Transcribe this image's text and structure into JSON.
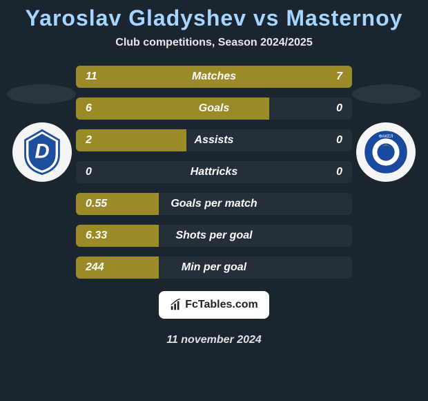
{
  "title": "Yaroslav Gladyshev vs Masternoy",
  "subtitle": "Club competitions, Season 2024/2025",
  "date": "11 november 2024",
  "footer_brand": "FcTables.com",
  "colors": {
    "bar_left": "#9a8b28",
    "bar_right": "#9a8b28",
    "row_bg": "#242f3a",
    "title": "#a6d5ff",
    "text": "#ffffff"
  },
  "logos": {
    "left": {
      "name": "dinamo-moscow-crest",
      "primary": "#1e4f9e",
      "accent": "#ffffff",
      "letter": "D"
    },
    "right": {
      "name": "fakel-voronezh-crest",
      "primary": "#1a4aa0",
      "accent": "#ffffff",
      "letter": "Ф"
    }
  },
  "stats": [
    {
      "label": "Matches",
      "left_val": "11",
      "right_val": "7",
      "left_pct": 61,
      "right_pct": 39
    },
    {
      "label": "Goals",
      "left_val": "6",
      "right_val": "0",
      "left_pct": 70,
      "right_pct": 0
    },
    {
      "label": "Assists",
      "left_val": "2",
      "right_val": "0",
      "left_pct": 40,
      "right_pct": 0
    },
    {
      "label": "Hattricks",
      "left_val": "0",
      "right_val": "0",
      "left_pct": 0,
      "right_pct": 0
    },
    {
      "label": "Goals per match",
      "left_val": "0.55",
      "right_val": "",
      "left_pct": 30,
      "right_pct": 0
    },
    {
      "label": "Shots per goal",
      "left_val": "6.33",
      "right_val": "",
      "left_pct": 30,
      "right_pct": 0
    },
    {
      "label": "Min per goal",
      "left_val": "244",
      "right_val": "",
      "left_pct": 30,
      "right_pct": 0
    }
  ]
}
